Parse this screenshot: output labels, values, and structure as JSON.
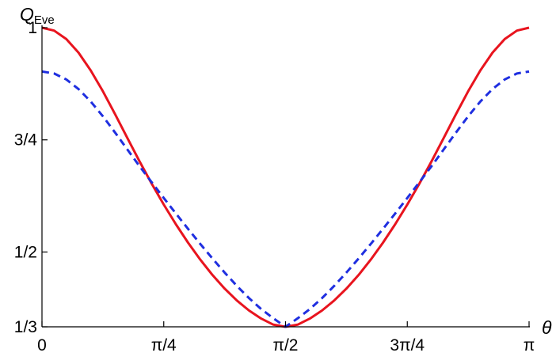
{
  "chart_data": {
    "type": "line",
    "ylabel_main": "Q",
    "ylabel_sub": "Eve",
    "xlabel": "θ",
    "xlim_label": [
      "0",
      "π"
    ],
    "xlim": [
      0,
      3.14159
    ],
    "ylim": [
      0.3333,
      1.0
    ],
    "x_ticks": [
      {
        "value": 0,
        "label": "0"
      },
      {
        "value": 0.7854,
        "label": "π/4"
      },
      {
        "value": 1.5708,
        "label": "π/2"
      },
      {
        "value": 2.3562,
        "label": "3π/4"
      },
      {
        "value": 3.1416,
        "label": "π"
      }
    ],
    "y_ticks": [
      {
        "value": 0.3333,
        "label": "1/3"
      },
      {
        "value": 0.5,
        "label": "1/2"
      },
      {
        "value": 0.75,
        "label": "3/4"
      },
      {
        "value": 1.0,
        "label": "1"
      }
    ],
    "grid": false,
    "series": [
      {
        "color": "#e8141e",
        "style": "solid",
        "x": [
          0,
          0.0785,
          0.1571,
          0.2356,
          0.3142,
          0.3927,
          0.4712,
          0.5498,
          0.6283,
          0.7069,
          0.7854,
          0.8639,
          0.9425,
          1.021,
          1.0996,
          1.1781,
          1.2566,
          1.3352,
          1.4137,
          1.4923,
          1.5708,
          1.6493,
          1.7279,
          1.8064,
          1.885,
          1.9635,
          2.042,
          2.1206,
          2.1991,
          2.2777,
          2.3562,
          2.4347,
          2.5133,
          2.5918,
          2.6704,
          2.7489,
          2.8274,
          2.906,
          2.9845,
          3.0631,
          3.1416
        ],
        "y": [
          1.0,
          0.9935,
          0.9746,
          0.9444,
          0.9048,
          0.8584,
          0.8074,
          0.7548,
          0.7026,
          0.6528,
          0.6058,
          0.5617,
          0.5207,
          0.483,
          0.4488,
          0.4185,
          0.392,
          0.3697,
          0.3517,
          0.3381,
          0.3333,
          0.3381,
          0.3517,
          0.3697,
          0.392,
          0.4185,
          0.4488,
          0.483,
          0.5207,
          0.5617,
          0.6058,
          0.6528,
          0.7026,
          0.7548,
          0.8074,
          0.8584,
          0.9048,
          0.9444,
          0.9746,
          0.9935,
          1.0
        ]
      },
      {
        "color": "#1f2fe0",
        "style": "dashed",
        "x": [
          0,
          0.0785,
          0.1571,
          0.2356,
          0.3142,
          0.3927,
          0.4712,
          0.5498,
          0.6283,
          0.7069,
          0.7854,
          0.8639,
          0.9425,
          1.021,
          1.0996,
          1.1781,
          1.2566,
          1.3352,
          1.4137,
          1.4923,
          1.5708,
          1.6493,
          1.7279,
          1.8064,
          1.885,
          1.9635,
          2.042,
          2.1206,
          2.1991,
          2.2777,
          2.3562,
          2.4347,
          2.5133,
          2.5918,
          2.6704,
          2.7489,
          2.8274,
          2.906,
          2.9845,
          3.0631,
          3.1416
        ],
        "y": [
          0.9024,
          0.8979,
          0.8846,
          0.8633,
          0.8355,
          0.8026,
          0.7664,
          0.729,
          0.6917,
          0.6558,
          0.6205,
          0.5857,
          0.5515,
          0.518,
          0.4855,
          0.4542,
          0.4246,
          0.3973,
          0.3729,
          0.3522,
          0.3333,
          0.3522,
          0.3729,
          0.3973,
          0.4246,
          0.4542,
          0.4855,
          0.518,
          0.5515,
          0.5857,
          0.6205,
          0.6558,
          0.6917,
          0.729,
          0.7664,
          0.8026,
          0.8355,
          0.8633,
          0.8846,
          0.8979,
          0.9024
        ]
      }
    ]
  }
}
